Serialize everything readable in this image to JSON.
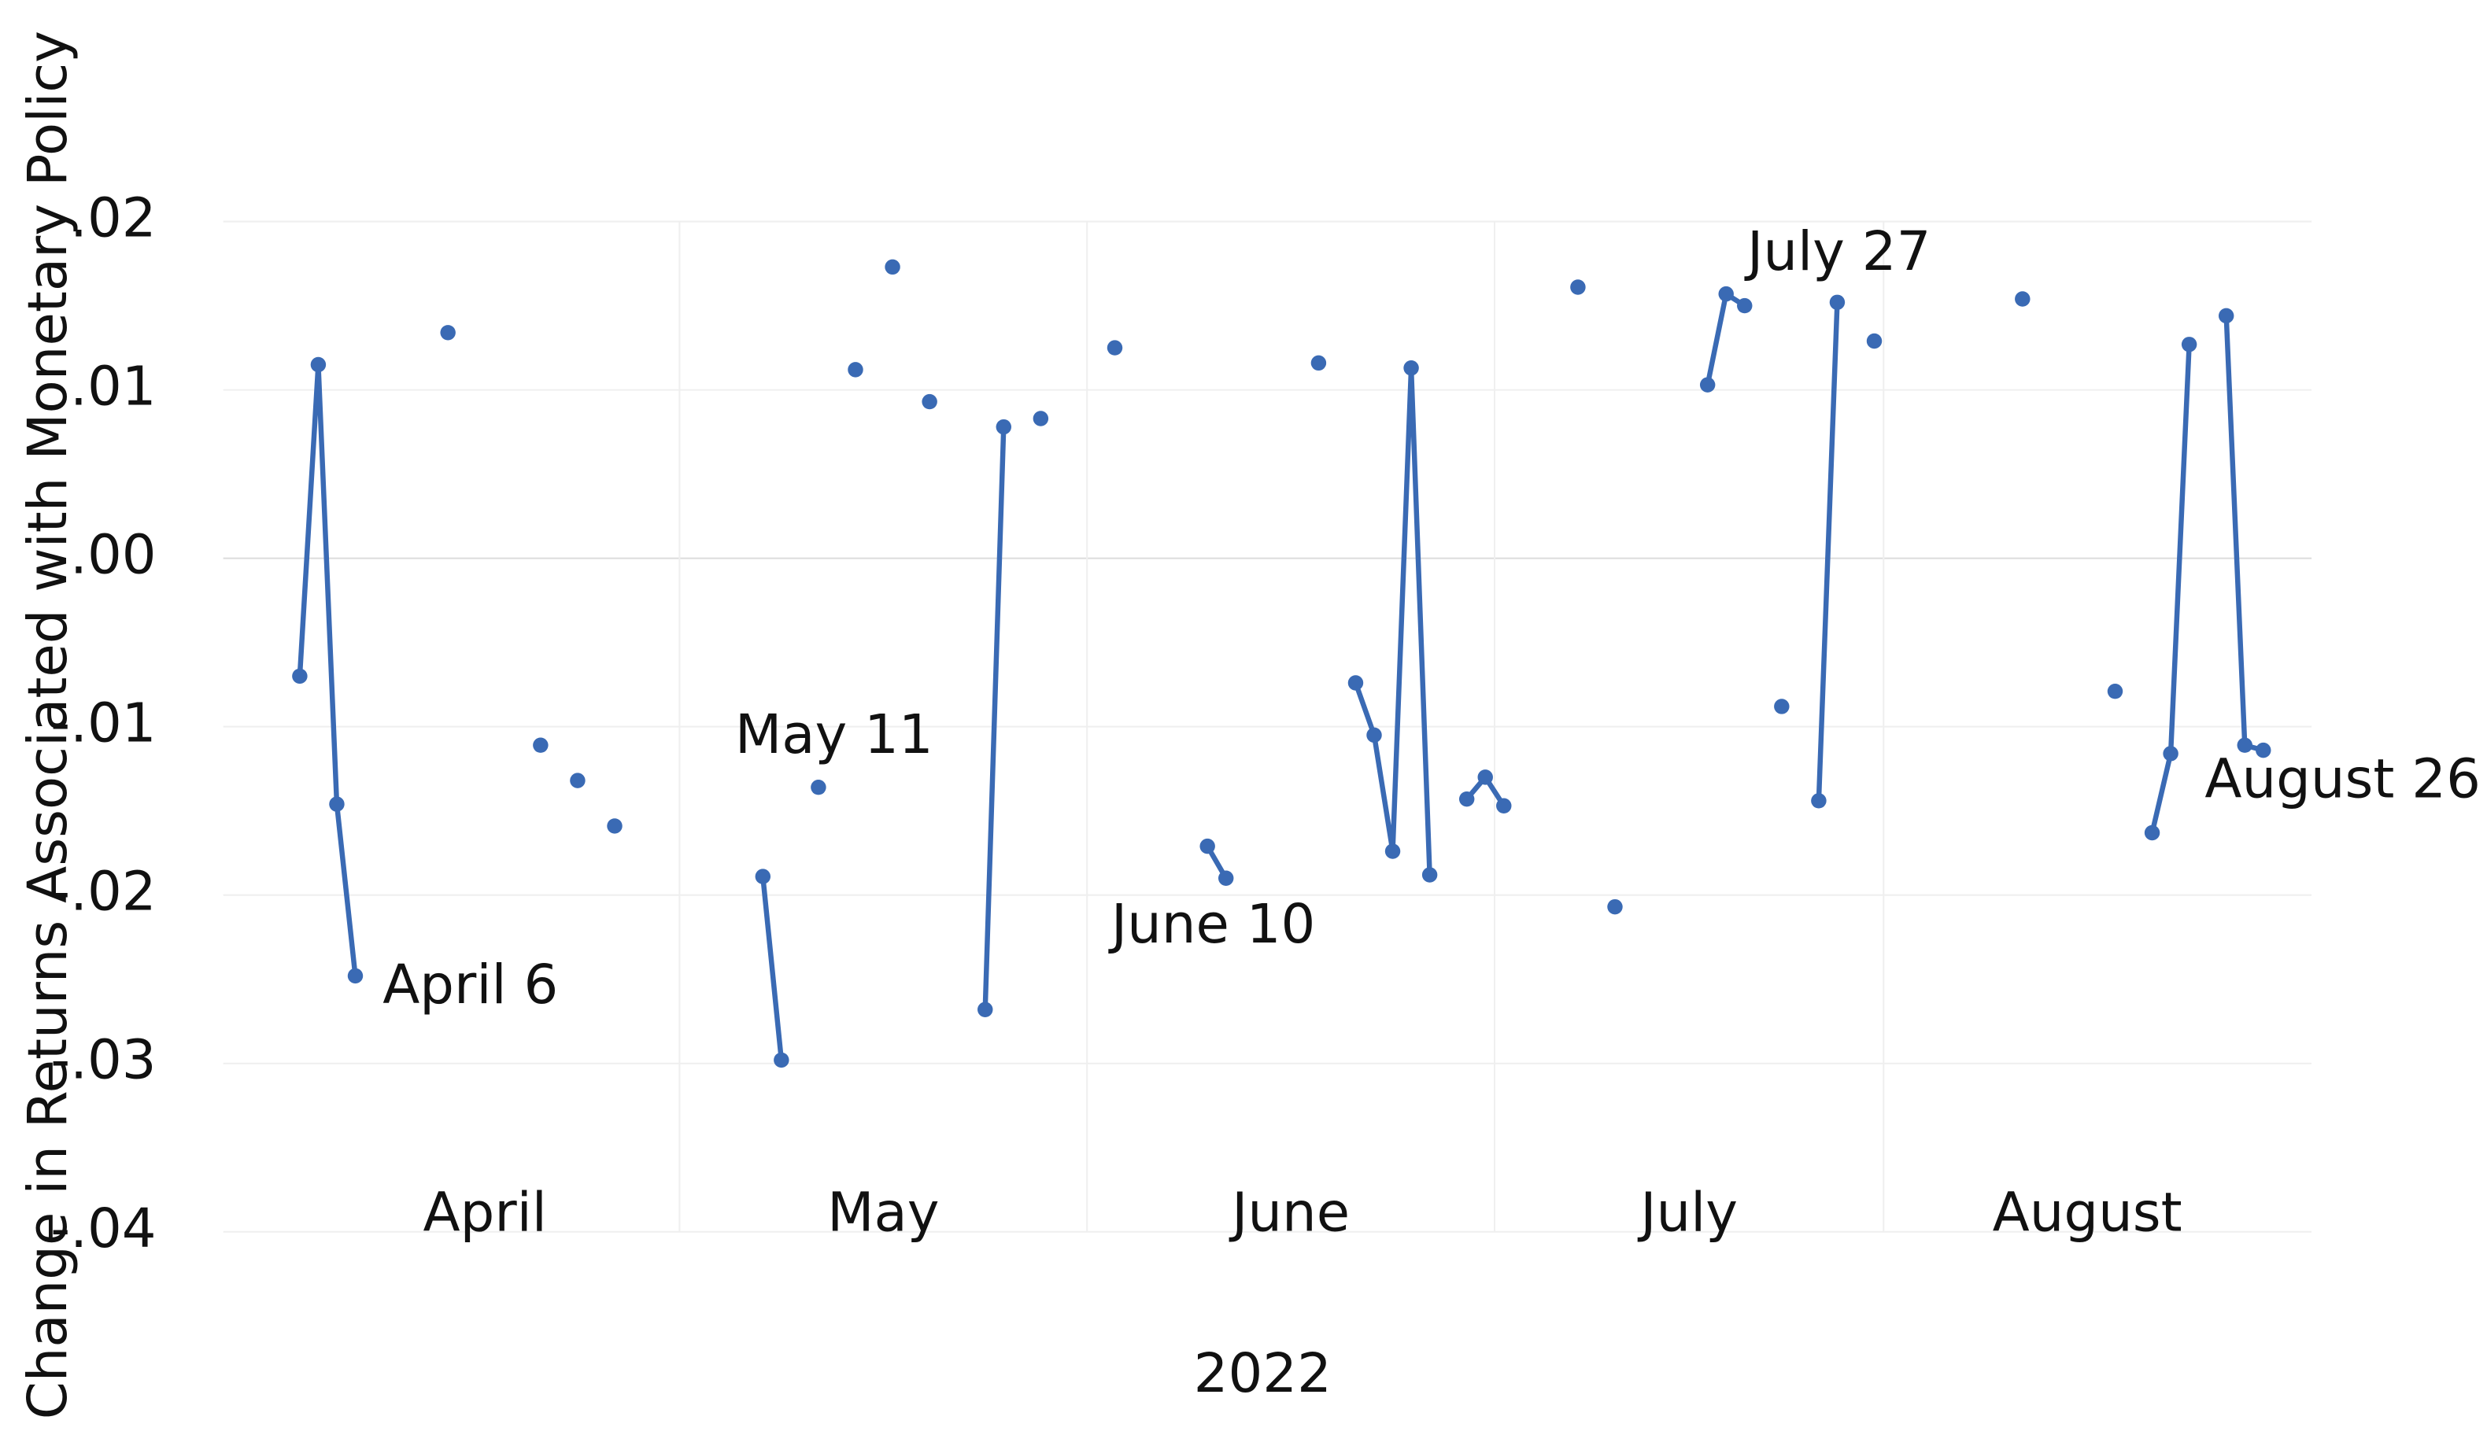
{
  "chart_data": {
    "type": "line",
    "y_label": "Change in Returns Associated with Monetary Policy",
    "x_label": "2022",
    "categories": [
      "April",
      "April",
      "April",
      "April",
      "April",
      "April",
      "April",
      "April",
      "April",
      "April",
      "April",
      "April",
      "April",
      "April",
      "April",
      "April",
      "April",
      "April",
      "April",
      "April",
      "April",
      "May",
      "May",
      "May",
      "May",
      "May",
      "May",
      "May",
      "May",
      "May",
      "May",
      "May",
      "May",
      "May",
      "May",
      "May",
      "May",
      "May",
      "May",
      "May",
      "May",
      "May",
      "May",
      "June",
      "June",
      "June",
      "June",
      "June",
      "June",
      "June",
      "June",
      "June",
      "June",
      "June",
      "June",
      "June",
      "June",
      "June",
      "June",
      "June",
      "June",
      "June",
      "June",
      "June",
      "June",
      "July",
      "July",
      "July",
      "July",
      "July",
      "July",
      "July",
      "July",
      "July",
      "July",
      "July",
      "July",
      "July",
      "July",
      "July",
      "July",
      "July",
      "July",
      "July",
      "July",
      "July",
      "August",
      "August",
      "August",
      "August",
      "August",
      "August",
      "August",
      "August",
      "August",
      "August",
      "August",
      "August",
      "August",
      "August",
      "August",
      "August",
      "August",
      "August",
      "August",
      "August",
      "August",
      "August"
    ],
    "series": [
      {
        "color": "#3a6ab4",
        "values": [
          -0.007,
          0.0115,
          -0.0146,
          -0.0248,
          null,
          null,
          null,
          null,
          0.0134,
          null,
          null,
          null,
          null,
          -0.0111,
          null,
          -0.0132,
          null,
          -0.0159,
          null,
          null,
          null,
          null,
          null,
          null,
          null,
          -0.0189,
          -0.0298,
          null,
          -0.0136,
          null,
          0.0112,
          null,
          0.0173,
          null,
          0.0093,
          null,
          null,
          -0.0268,
          0.0078,
          null,
          0.0083,
          null,
          null,
          null,
          0.0125,
          null,
          null,
          null,
          null,
          -0.0171,
          -0.019,
          null,
          null,
          null,
          null,
          0.0116,
          null,
          -0.0074,
          -0.0105,
          -0.0174,
          0.0113,
          -0.0188,
          null,
          -0.0143,
          -0.013,
          -0.0147,
          null,
          null,
          null,
          0.0161,
          null,
          -0.0207,
          null,
          null,
          null,
          null,
          0.0103,
          0.0157,
          0.015,
          null,
          -0.0088,
          null,
          -0.0144,
          0.0152,
          null,
          0.0129,
          null,
          null,
          null,
          null,
          null,
          null,
          null,
          0.0154,
          null,
          null,
          null,
          null,
          -0.0079,
          null,
          -0.0163,
          -0.0116,
          0.0127,
          null,
          0.0144,
          -0.0111,
          -0.0114,
          null
        ]
      }
    ],
    "annotations": [
      "April 6",
      "May 11",
      "June 10",
      "July 27",
      "August 26"
    ],
    "ylim": [
      -0.04,
      0.02
    ],
    "yticks": [
      {
        "value": -0.04,
        "label": "-.04"
      },
      {
        "value": -0.03,
        "label": "-.03"
      },
      {
        "value": -0.02,
        "label": "-.02"
      },
      {
        "value": -0.01,
        "label": "-.01"
      },
      {
        "value": 0,
        "label": ".00"
      },
      {
        "value": 0.01,
        "label": ".01"
      },
      {
        "value": 0.02,
        "label": ".02"
      }
    ],
    "grid": true
  }
}
